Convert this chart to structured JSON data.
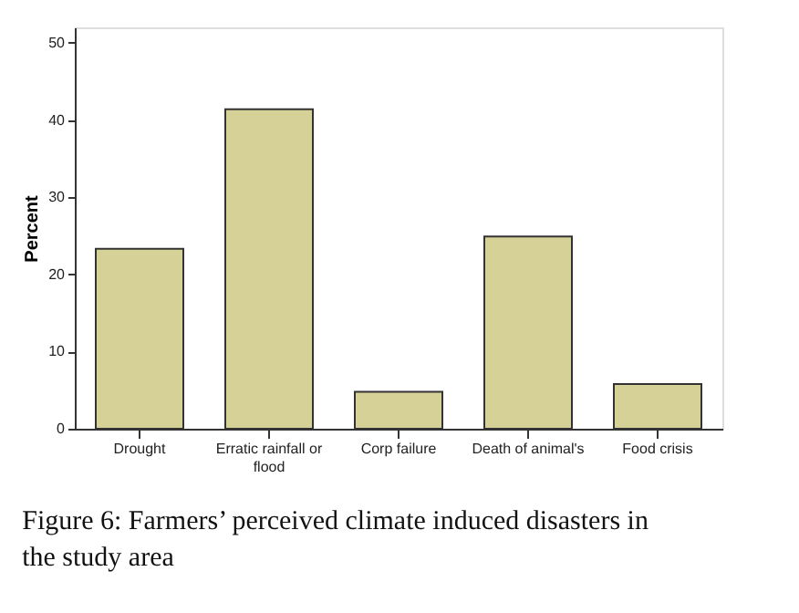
{
  "chart_data": {
    "type": "bar",
    "ylabel": "Percent",
    "categories": [
      "Drought",
      "Erratic rainfall or flood",
      "Corp failure",
      "Death of animal's",
      "Food crisis"
    ],
    "values": [
      23.3,
      41.4,
      4.8,
      24.9,
      5.8
    ],
    "color": "#d6d196",
    "ylim": [
      0,
      52
    ],
    "yticks": [
      0,
      10,
      20,
      30,
      40,
      50
    ],
    "grid": false,
    "annotations": [
      "Figure 6: Farmers’ perceived climate induced disasters in the study area"
    ]
  }
}
